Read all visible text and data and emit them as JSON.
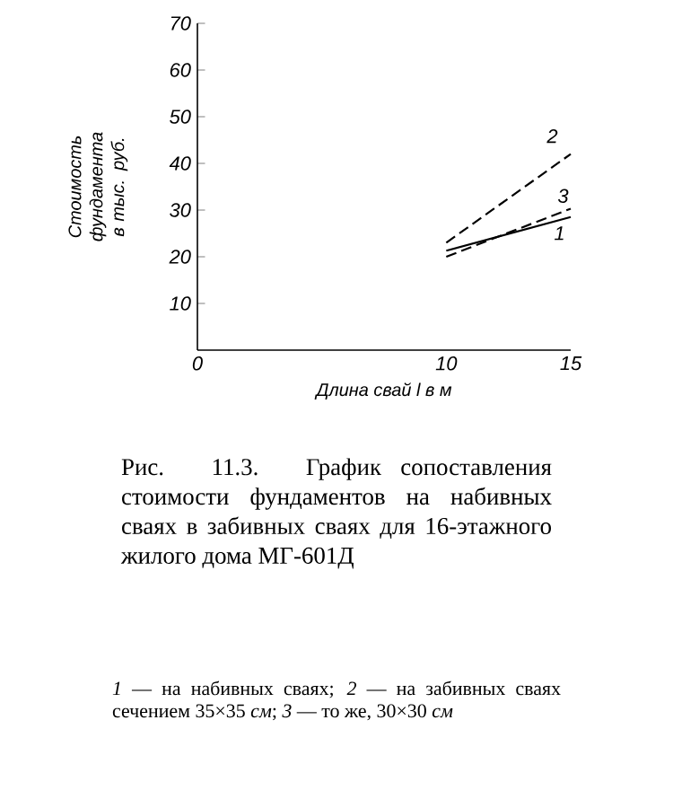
{
  "chart_data": {
    "type": "line",
    "xlabel": "Длина свай l в м",
    "ylabel": "Стоимость фундамента в тыс. руб.",
    "x": [
      10,
      15
    ],
    "series": [
      {
        "name": "1",
        "color": "#000000",
        "values": [
          21.3,
          28.5
        ],
        "line_style": "solid"
      },
      {
        "name": "2",
        "color": "#000000",
        "values": [
          23,
          42
        ],
        "line_style": "dashed"
      },
      {
        "name": "3",
        "color": "#000000",
        "values": [
          20,
          30.3
        ],
        "line_style": "dashed"
      }
    ],
    "xlim": [
      0,
      15
    ],
    "xticks": [
      0,
      10,
      15
    ],
    "ylim": [
      0,
      70
    ],
    "yticks": [
      10,
      20,
      30,
      40,
      50,
      60,
      70
    ],
    "grid": false,
    "legend": false,
    "marker": "none",
    "annotations": [
      "Рис. 11.3. График сопоставления стоимости фундаментов на набивных сваях в забивных сваях для 16-этажного жилого дома МГ-601Д",
      "*1* — на набивных сваях; *2* — на забивных сваях сечением 35×35 *см*; *3* — то же, 30×30 *см*"
    ]
  }
}
